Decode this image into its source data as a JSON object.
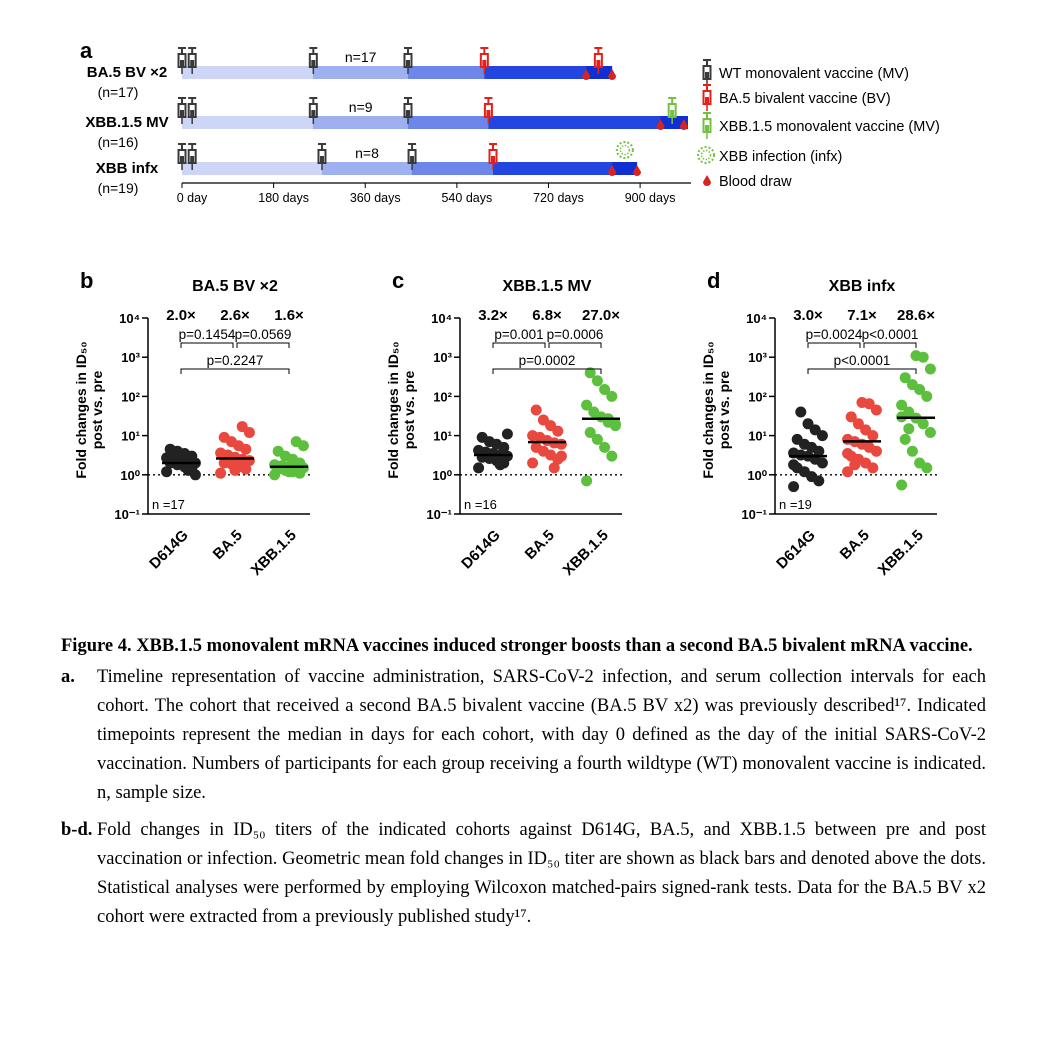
{
  "timeline": {
    "label": "a",
    "xlim": [
      0,
      1000
    ],
    "xticks": [
      {
        "value": 0,
        "label": "0 day"
      },
      {
        "value": 180,
        "label": "180 days"
      },
      {
        "value": 360,
        "label": "360 days"
      },
      {
        "value": 540,
        "label": "540 days"
      },
      {
        "value": 720,
        "label": "720 days"
      },
      {
        "value": 900,
        "label": "900 days"
      }
    ],
    "colors": {
      "wt": "#3a3a3a",
      "bv": "#e32119",
      "xbb_mv": "#74c043",
      "infx": "#74c043",
      "draw": "#d8241f"
    },
    "cohorts": [
      {
        "name": "BA.5 BV ×2",
        "size": "(n=17)",
        "wt_n": "n=17",
        "wt_days": [
          0,
          20,
          258,
          444
        ],
        "bv_days": [
          594,
          818
        ],
        "xbb_mv_days": [],
        "infx_days": [],
        "draw_days": [
          794,
          845
        ],
        "end_day": 845
      },
      {
        "name": "XBB.1.5 MV",
        "size": "(n=16)",
        "wt_n": "n=9",
        "wt_days": [
          0,
          20,
          258,
          444
        ],
        "bv_days": [
          602
        ],
        "xbb_mv_days": [
          963
        ],
        "infx_days": [],
        "draw_days": [
          940,
          986
        ],
        "end_day": 994
      },
      {
        "name": "XBB infx",
        "size": "(n=19)",
        "wt_n": "n=8",
        "wt_days": [
          0,
          20,
          275,
          452
        ],
        "bv_days": [
          611
        ],
        "xbb_mv_days": [],
        "infx_days": [
          870
        ],
        "draw_days": [
          845,
          894
        ],
        "end_day": 894
      }
    ],
    "legend": [
      "WT monovalent vaccine (MV)",
      "BA.5 bivalent vaccine (BV)",
      "XBB.1.5 monovalent vaccine (MV)",
      "XBB infection (infx)",
      "Blood draw"
    ]
  },
  "chart_data": [
    {
      "type": "dot",
      "label": "b",
      "title": "BA.5 BV ×2",
      "n_label": "n =17",
      "ylabel": [
        "Fold changes in ID₅₀",
        "post vs. pre"
      ],
      "categories": [
        "D614G",
        "BA.5",
        "XBB.1.5"
      ],
      "colors": [
        "#222222",
        "#e8483d",
        "#5cbf3e"
      ],
      "values": [
        [
          1.2,
          1.5,
          1.6,
          1.8,
          2.0,
          2.0,
          2.1,
          2.3,
          2.5,
          2.7,
          3.0,
          3.5,
          4.0,
          4.5,
          1.0,
          1.3,
          2.8
        ],
        [
          1.1,
          1.4,
          1.6,
          1.9,
          2.0,
          2.3,
          2.5,
          2.8,
          3.2,
          3.6,
          4.5,
          5.5,
          7,
          9,
          12,
          17,
          1.3
        ],
        [
          1.0,
          1.1,
          1.2,
          1.3,
          1.4,
          1.5,
          1.5,
          1.6,
          1.7,
          1.8,
          2.0,
          2.5,
          3.0,
          4.0,
          5.5,
          7.0,
          1.2
        ]
      ],
      "means": [
        2.0,
        2.6,
        1.6
      ],
      "mean_labels": [
        "2.0×",
        "2.6×",
        "1.6×"
      ],
      "pvalues": [
        "p=0.1454",
        "p=0.0569",
        "p=0.2247"
      ],
      "log": true,
      "ylim": [
        0.1,
        10000
      ],
      "yticks": [
        {
          "value": 0.1,
          "label": "10⁻¹"
        },
        {
          "value": 1,
          "label": "10⁰"
        },
        {
          "value": 10,
          "label": "10¹"
        },
        {
          "value": 100,
          "label": "10²"
        },
        {
          "value": 1000,
          "label": "10³"
        },
        {
          "value": 10000,
          "label": "10⁴"
        }
      ],
      "reference": 1
    },
    {
      "type": "dot",
      "label": "c",
      "title": "XBB.1.5 MV",
      "n_label": "n =16",
      "ylabel": [
        "Fold changes in ID₅₀",
        "post vs. pre"
      ],
      "categories": [
        "D614G",
        "BA.5",
        "XBB.1.5"
      ],
      "colors": [
        "#222222",
        "#e8483d",
        "#5cbf3e"
      ],
      "values": [
        [
          1.5,
          2,
          2.3,
          2.6,
          2.8,
          3,
          3.2,
          3.5,
          3.8,
          4.2,
          5,
          6,
          7,
          9,
          11,
          1.8
        ],
        [
          2,
          2.5,
          3.2,
          4,
          5,
          6,
          6.5,
          7.5,
          9,
          10,
          13,
          18,
          25,
          45,
          3,
          1.5
        ],
        [
          0.7,
          3,
          5,
          8,
          12,
          18,
          22,
          30,
          40,
          60,
          100,
          150,
          250,
          400,
          20,
          27
        ]
      ],
      "means": [
        3.2,
        6.8,
        27.0
      ],
      "mean_labels": [
        "3.2×",
        "6.8×",
        "27.0×"
      ],
      "pvalues": [
        "p=0.001",
        "p=0.0006",
        "p=0.0002"
      ],
      "log": true,
      "ylim": [
        0.1,
        10000
      ],
      "yticks": [
        {
          "value": 0.1,
          "label": "10⁻¹"
        },
        {
          "value": 1,
          "label": "10⁰"
        },
        {
          "value": 10,
          "label": "10¹"
        },
        {
          "value": 100,
          "label": "10²"
        },
        {
          "value": 1000,
          "label": "10³"
        },
        {
          "value": 10000,
          "label": "10⁴"
        }
      ],
      "reference": 1
    },
    {
      "type": "dot",
      "label": "d",
      "title": "XBB infx",
      "n_label": "n =19",
      "ylabel": [
        "Fold changes in ID₅₀",
        "post vs. pre"
      ],
      "categories": [
        "D614G",
        "BA.5",
        "XBB.1.5"
      ],
      "colors": [
        "#222222",
        "#e8483d",
        "#5cbf3e"
      ],
      "values": [
        [
          0.5,
          0.7,
          0.9,
          1.2,
          1.5,
          2,
          2.5,
          3,
          3.2,
          3.6,
          4,
          5,
          6,
          8,
          10,
          14,
          20,
          40,
          1.8
        ],
        [
          1.2,
          1.5,
          2,
          2.5,
          3,
          4,
          5,
          6,
          7,
          8,
          10,
          14,
          20,
          30,
          45,
          65,
          70,
          1.8,
          3.5
        ],
        [
          0.55,
          1.5,
          2,
          4,
          8,
          12,
          20,
          28,
          40,
          60,
          100,
          150,
          200,
          300,
          500,
          1000,
          1100,
          15,
          30
        ]
      ],
      "means": [
        3.0,
        7.1,
        28.6
      ],
      "mean_labels": [
        "3.0×",
        "7.1×",
        "28.6×"
      ],
      "pvalues": [
        "p=0.0024",
        "p<0.0001",
        "p<0.0001"
      ],
      "log": true,
      "ylim": [
        0.1,
        10000
      ],
      "yticks": [
        {
          "value": 0.1,
          "label": "10⁻¹"
        },
        {
          "value": 1,
          "label": "10⁰"
        },
        {
          "value": 10,
          "label": "10¹"
        },
        {
          "value": 100,
          "label": "10²"
        },
        {
          "value": 1000,
          "label": "10³"
        },
        {
          "value": 10000,
          "label": "10⁴"
        }
      ],
      "reference": 1
    }
  ],
  "caption": {
    "title": "Figure 4. XBB.1.5 monovalent mRNA vaccines induced stronger boosts than a second BA.5 bivalent mRNA vaccine.",
    "items": [
      {
        "label": "a.",
        "text": "Timeline representation of vaccine administration, SARS-CoV-2 infection, and serum collection intervals for each cohort.  The cohort that received a second BA.5 bivalent vaccine (BA.5 BV x2) was previously described¹⁷.  Indicated timepoints represent the median in days for each cohort, with day 0 defined as the day of the initial SARS-CoV-2 vaccination. Numbers of participants for each group receiving a fourth wildtype (WT) monovalent vaccine is indicated.  n, sample size."
      },
      {
        "label": "b-d.",
        "text": "Fold changes in ID₅₀ titers of the indicated cohorts against D614G, BA.5, and XBB.1.5 between pre and post vaccination or infection.  Geometric mean fold changes in ID₅₀ titer are shown as black bars and denoted above the dots.  Statistical analyses were performed by employing Wilcoxon matched-pairs signed-rank tests.  Data for the BA.5 BV x2 cohort were extracted from a previously published study¹⁷."
      }
    ]
  }
}
